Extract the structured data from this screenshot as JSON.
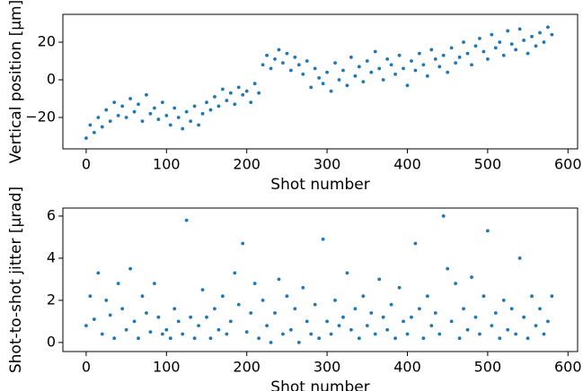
{
  "chart_data": [
    {
      "type": "scatter",
      "xlabel": "Shot number",
      "ylabel": "Vertical position [μm]",
      "color": "#1f77b4",
      "x": [
        0,
        5,
        10,
        15,
        20,
        25,
        30,
        35,
        40,
        45,
        50,
        55,
        60,
        65,
        70,
        75,
        80,
        85,
        90,
        95,
        100,
        105,
        110,
        115,
        120,
        125,
        130,
        135,
        140,
        145,
        150,
        155,
        160,
        165,
        170,
        175,
        180,
        185,
        190,
        195,
        200,
        205,
        210,
        215,
        220,
        225,
        230,
        235,
        240,
        245,
        250,
        255,
        260,
        265,
        270,
        275,
        280,
        285,
        290,
        295,
        300,
        305,
        310,
        315,
        320,
        325,
        330,
        335,
        340,
        345,
        350,
        355,
        360,
        365,
        370,
        375,
        380,
        385,
        390,
        395,
        400,
        405,
        410,
        415,
        420,
        425,
        430,
        435,
        440,
        445,
        450,
        455,
        460,
        465,
        470,
        475,
        480,
        485,
        490,
        495,
        500,
        505,
        510,
        515,
        520,
        525,
        530,
        535,
        540,
        545,
        550,
        555,
        560,
        565,
        570,
        575,
        580
      ],
      "values": [
        -31,
        -24,
        -28,
        -20,
        -25,
        -16,
        -22,
        -12,
        -19,
        -14,
        -20,
        -10,
        -17,
        -13,
        -22,
        -8,
        -18,
        -15,
        -21,
        -12,
        -19,
        -24,
        -15,
        -20,
        -26,
        -17,
        -22,
        -14,
        -24,
        -18,
        -12,
        -16,
        -9,
        -14,
        -5,
        -11,
        -7,
        -13,
        -4,
        -8,
        -6,
        -12,
        -2,
        -7,
        8,
        13,
        6,
        11,
        16,
        9,
        14,
        5,
        12,
        8,
        3,
        10,
        -4,
        6,
        1,
        -2,
        4,
        -6,
        9,
        0,
        5,
        -3,
        12,
        2,
        7,
        -1,
        10,
        4,
        15,
        6,
        0,
        11,
        8,
        3,
        13,
        6,
        -3,
        10,
        5,
        14,
        8,
        2,
        16,
        11,
        7,
        13,
        4,
        17,
        9,
        12,
        20,
        14,
        8,
        18,
        22,
        15,
        11,
        24,
        17,
        20,
        13,
        26,
        19,
        16,
        27,
        21,
        14,
        23,
        18,
        25,
        20,
        28,
        24
      ],
      "xlim": [
        -29,
        612
      ],
      "ylim": [
        -36.7,
        34.8
      ],
      "xticks": [
        0,
        100,
        200,
        300,
        400,
        500,
        600
      ],
      "yticks": [
        {
          "value": -20,
          "label": "−20"
        },
        0,
        20
      ]
    },
    {
      "type": "scatter",
      "xlabel": "Shot number",
      "ylabel": "Shot-to-shot jitter [μrad]",
      "color": "#1f77b4",
      "x": [
        0,
        5,
        10,
        15,
        20,
        25,
        30,
        35,
        40,
        45,
        50,
        55,
        60,
        65,
        70,
        75,
        80,
        85,
        90,
        95,
        100,
        105,
        110,
        115,
        120,
        125,
        130,
        135,
        140,
        145,
        150,
        155,
        160,
        165,
        170,
        175,
        180,
        185,
        190,
        195,
        200,
        205,
        210,
        215,
        220,
        225,
        230,
        235,
        240,
        245,
        250,
        255,
        260,
        265,
        270,
        275,
        280,
        285,
        290,
        295,
        300,
        305,
        310,
        315,
        320,
        325,
        330,
        335,
        340,
        345,
        350,
        355,
        360,
        365,
        370,
        375,
        380,
        385,
        390,
        395,
        400,
        405,
        410,
        415,
        420,
        425,
        430,
        435,
        440,
        445,
        450,
        455,
        460,
        465,
        470,
        475,
        480,
        485,
        490,
        495,
        500,
        505,
        510,
        515,
        520,
        525,
        530,
        535,
        540,
        545,
        550,
        555,
        560,
        565,
        570,
        575,
        580
      ],
      "values": [
        0.8,
        2.2,
        1.1,
        3.3,
        0.4,
        2.0,
        1.3,
        0.2,
        2.8,
        1.6,
        0.6,
        3.5,
        1.0,
        0.2,
        2.2,
        1.4,
        0.5,
        2.8,
        1.2,
        0.4,
        0.6,
        0.2,
        1.6,
        1.0,
        0.4,
        5.8,
        1.2,
        0.2,
        0.8,
        2.5,
        1.2,
        0.2,
        1.6,
        0.6,
        2.2,
        0.4,
        1.0,
        3.3,
        1.8,
        4.7,
        0.5,
        1.4,
        2.8,
        0.2,
        2.0,
        0.8,
        0.0,
        1.4,
        3.0,
        0.4,
        2.2,
        0.6,
        1.6,
        0.0,
        2.6,
        1.0,
        0.4,
        1.8,
        0.2,
        4.9,
        1.0,
        0.4,
        2.0,
        0.8,
        1.2,
        3.3,
        0.6,
        1.6,
        0.2,
        2.2,
        0.8,
        1.4,
        0.4,
        3.0,
        1.2,
        0.6,
        1.8,
        0.2,
        2.6,
        1.0,
        0.4,
        1.2,
        4.7,
        1.6,
        0.2,
        2.2,
        0.8,
        1.4,
        0.4,
        6.0,
        3.5,
        1.0,
        2.8,
        0.2,
        1.6,
        0.6,
        3.1,
        1.2,
        0.4,
        2.2,
        5.3,
        0.8,
        1.4,
        0.2,
        2.0,
        0.6,
        1.6,
        0.4,
        4.0,
        1.2,
        0.2,
        2.2,
        0.8,
        1.6,
        0.4,
        1.0,
        2.2
      ],
      "xlim": [
        -29,
        612
      ],
      "ylim": [
        -0.43,
        6.38
      ],
      "xticks": [
        0,
        100,
        200,
        300,
        400,
        500,
        600
      ],
      "yticks": [
        0,
        2,
        4,
        6
      ]
    }
  ]
}
